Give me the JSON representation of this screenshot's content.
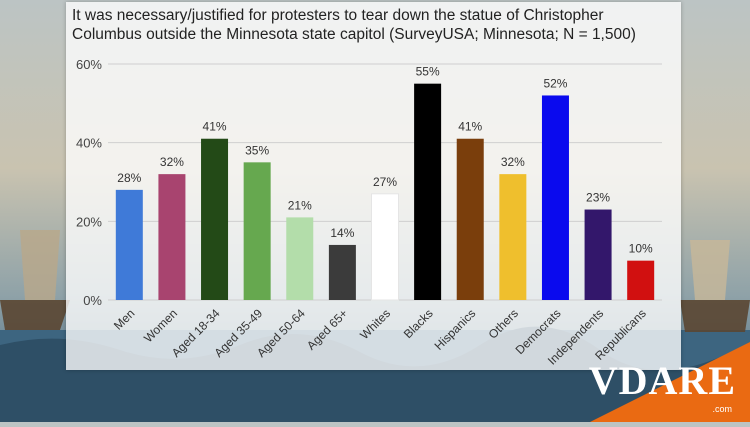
{
  "chart_data": {
    "type": "bar",
    "title": "It was necessary/justified for protesters to tear down the statue of Christopher Columbus outside the Minnesota state capitol (SurveyUSA; Minnesota; N = 1,500)",
    "categories": [
      "Men",
      "Women",
      "Aged 18-34",
      "Aged 35-49",
      "Aged 50-64",
      "Aged 65+",
      "Whites",
      "Blacks",
      "Hispanics",
      "Others",
      "Democrats",
      "Independents",
      "Republicans"
    ],
    "values": [
      28,
      32,
      41,
      35,
      21,
      14,
      27,
      55,
      41,
      32,
      52,
      23,
      10
    ],
    "value_labels": [
      "28%",
      "32%",
      "41%",
      "35%",
      "21%",
      "14%",
      "27%",
      "55%",
      "41%",
      "32%",
      "52%",
      "23%",
      "10%"
    ],
    "colors": [
      "#3f7ad8",
      "#a8446f",
      "#234a17",
      "#66a84f",
      "#b3ddaa",
      "#3b3b3b",
      "#ffffff",
      "#000000",
      "#7a3e0c",
      "#efbf2d",
      "#0a0aee",
      "#33176b",
      "#d11010"
    ],
    "ylim": [
      0,
      60
    ],
    "yticks": [
      "0%",
      "20%",
      "40%",
      "60%"
    ],
    "ytick_values": [
      0,
      20,
      40,
      60
    ],
    "grid": true,
    "xlabel": "",
    "ylabel": ""
  },
  "logo": {
    "text": "VDARE",
    "suffix": ".com"
  }
}
